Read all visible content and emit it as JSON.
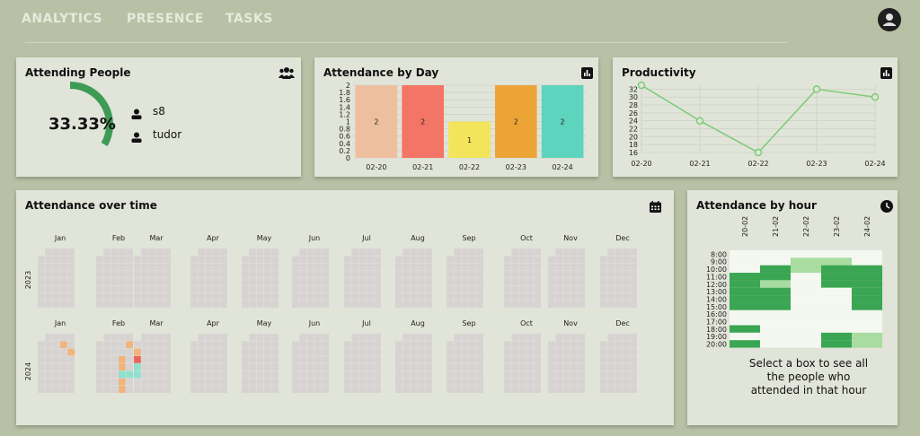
{
  "nav": {
    "items": [
      "ANALYTICS",
      "PRESENCE",
      "TASKS"
    ],
    "account_icon": "account-circle-icon"
  },
  "attending": {
    "title": "Attending People",
    "icon": "people-icon",
    "percent_label": "33.33%",
    "fraction": 0.3333,
    "accent": "#3d9b55",
    "people": [
      "s8",
      "tudor"
    ]
  },
  "by_day": {
    "title": "Attendance by Day",
    "icon": "bar-chart-icon",
    "chart_data": {
      "type": "bar",
      "categories": [
        "02-20",
        "02-21",
        "02-22",
        "02-23",
        "02-24"
      ],
      "values": [
        2,
        2,
        1,
        2,
        2
      ],
      "colors": [
        "#eebf9e",
        "#f47565",
        "#f2e55c",
        "#eca437",
        "#5dd4bd"
      ],
      "yticks": [
        "0",
        "0.2",
        "0.4",
        "0.6",
        "0.8",
        "1",
        "1.2",
        "1.4",
        "1.6",
        "1.8",
        "2"
      ],
      "ylim": [
        0,
        2
      ]
    }
  },
  "productivity": {
    "title": "Productivity",
    "icon": "bar-chart-icon",
    "chart_data": {
      "type": "line",
      "categories": [
        "02-20",
        "02-21",
        "02-22",
        "02-23",
        "02-24"
      ],
      "values": [
        33,
        24,
        16,
        32,
        30
      ],
      "color": "#7ccb78",
      "yticks": [
        "16",
        "18",
        "20",
        "22",
        "24",
        "26",
        "28",
        "30",
        "32"
      ],
      "ylim": [
        16,
        33
      ]
    }
  },
  "over_time": {
    "title": "Attendance over time",
    "icon": "calendar-icon",
    "months": [
      "Jan",
      "Feb",
      "Mar",
      "Apr",
      "May",
      "Jun",
      "Jul",
      "Aug",
      "Sep",
      "Oct",
      "Nov",
      "Dec"
    ],
    "years": [
      "2023",
      "2024"
    ],
    "empty_color": "#d8d3d3",
    "highlights": [
      {
        "month": 0,
        "week": 3,
        "day": 1,
        "color": "#f0b47e"
      },
      {
        "month": 0,
        "week": 4,
        "day": 2,
        "color": "#f0b47e"
      },
      {
        "month": 1,
        "week": 4,
        "day": 1,
        "color": "#f0b47e"
      },
      {
        "month": 1,
        "week": 3,
        "day": 3,
        "color": "#f0b47e"
      },
      {
        "month": 1,
        "week": 3,
        "day": 4,
        "color": "#f0b47e"
      },
      {
        "month": 1,
        "week": 3,
        "day": 5,
        "color": "#8fe0cf"
      },
      {
        "month": 1,
        "week": 4,
        "day": 5,
        "color": "#8fe0cf"
      },
      {
        "month": 1,
        "week": 3,
        "day": 6,
        "color": "#f0b47e"
      },
      {
        "month": 1,
        "week": 3,
        "day": 7,
        "color": "#f0b47e"
      },
      {
        "month": 2,
        "week": 0,
        "day": 2,
        "color": "#f0b47e"
      },
      {
        "month": 2,
        "week": 0,
        "day": 3,
        "color": "#e9635a"
      },
      {
        "month": 2,
        "week": 0,
        "day": 4,
        "color": "#8fe0cf"
      },
      {
        "month": 2,
        "week": 0,
        "day": 5,
        "color": "#8fe0cf"
      }
    ]
  },
  "by_hour": {
    "title": "Attendance by hour",
    "icon": "clock-icon",
    "days": [
      "20-02",
      "21-02",
      "22-02",
      "23-02",
      "24-02"
    ],
    "hours": [
      "8:00",
      "9:00",
      "10:00",
      "11:00",
      "12:00",
      "13:00",
      "14:00",
      "15:00",
      "16:00",
      "17:00",
      "18:00",
      "19:00",
      "20:00"
    ],
    "colors": {
      "0": "#f4f8f0",
      "1": "#a8dca0",
      "2": "#3aa653"
    },
    "grid": [
      [
        0,
        0,
        0,
        0,
        0
      ],
      [
        0,
        0,
        1,
        1,
        0
      ],
      [
        0,
        2,
        1,
        2,
        2
      ],
      [
        2,
        2,
        0,
        2,
        2
      ],
      [
        2,
        1,
        0,
        2,
        2
      ],
      [
        2,
        2,
        0,
        0,
        2
      ],
      [
        2,
        2,
        0,
        0,
        2
      ],
      [
        2,
        2,
        0,
        0,
        2
      ],
      [
        0,
        0,
        0,
        0,
        0
      ],
      [
        0,
        0,
        0,
        0,
        0
      ],
      [
        2,
        0,
        0,
        0,
        0
      ],
      [
        0,
        0,
        0,
        2,
        1
      ],
      [
        2,
        0,
        0,
        2,
        1
      ]
    ],
    "hint": "Select a box to see all the people who attended in that hour"
  }
}
